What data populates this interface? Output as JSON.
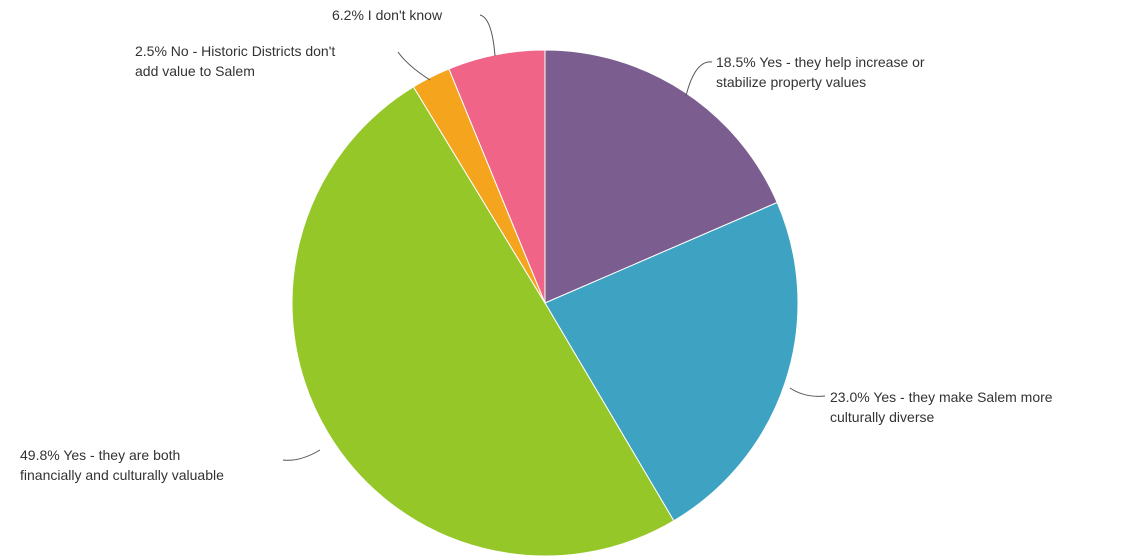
{
  "chart_data": {
    "type": "pie",
    "title": "",
    "slices": [
      {
        "label_lines": [
          "18.5% Yes - they help increase or",
          "stabilize property values"
        ],
        "value": 18.5,
        "color": "#7b5e8f"
      },
      {
        "label_lines": [
          "23.0% Yes - they make Salem more",
          "culturally diverse"
        ],
        "value": 23.0,
        "color": "#3ea2c2"
      },
      {
        "label_lines": [
          "49.8% Yes - they are both",
          "financially and culturally valuable"
        ],
        "value": 49.8,
        "color": "#95c728"
      },
      {
        "label_lines": [
          "2.5% No - Historic Districts don't",
          "add value to Salem"
        ],
        "value": 2.5,
        "color": "#f4a41d"
      },
      {
        "label_lines": [
          "6.2% I don't know"
        ],
        "value": 6.2,
        "color": "#ef6487"
      }
    ],
    "start_angle": "top",
    "direction": "clockwise",
    "legend": "none"
  }
}
